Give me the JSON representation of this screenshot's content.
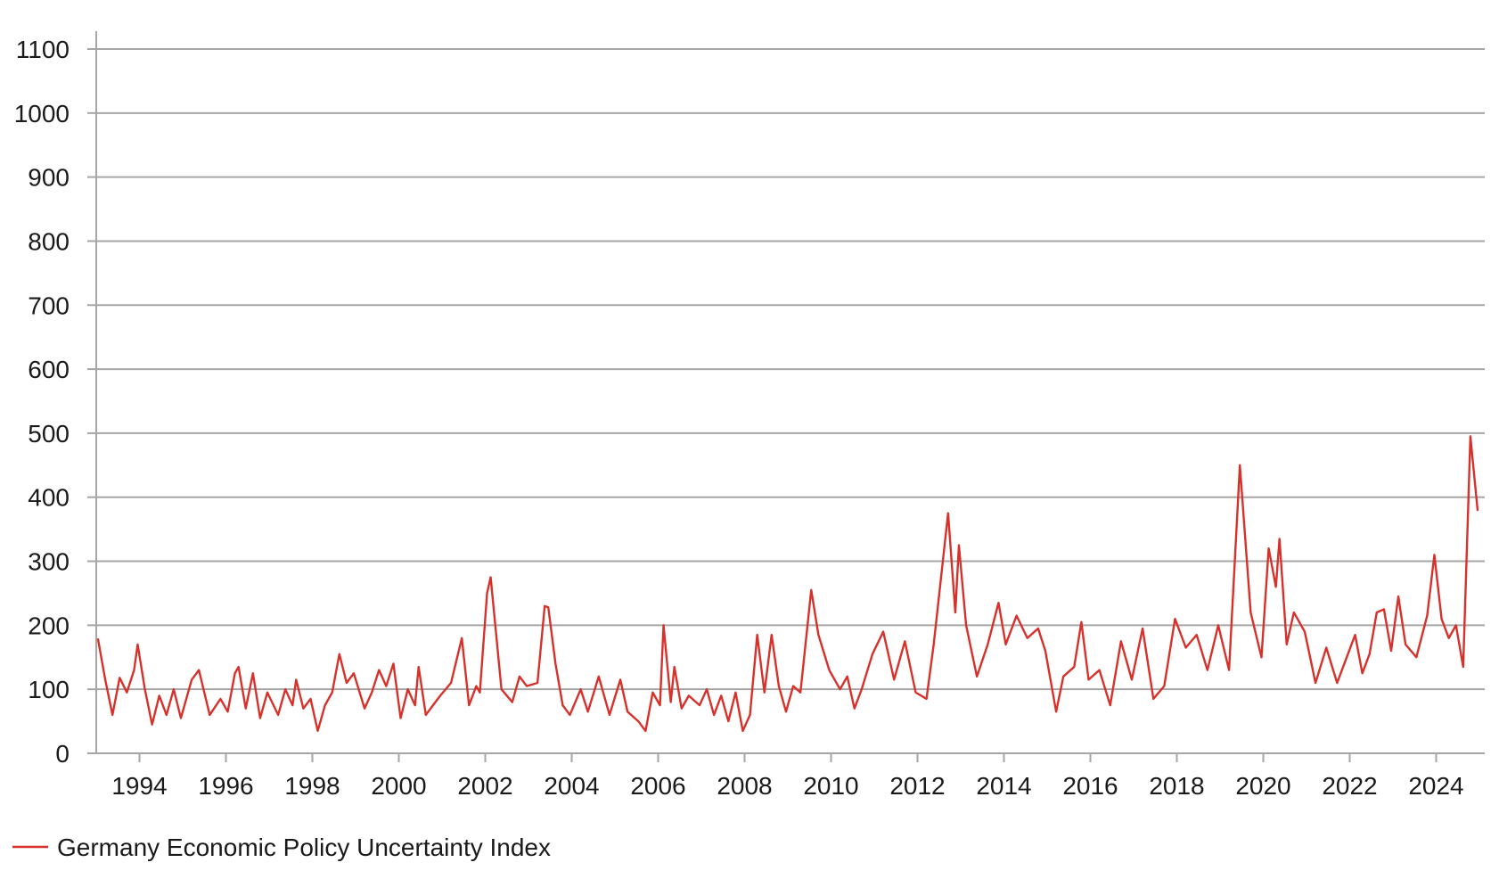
{
  "chart_data": {
    "type": "line",
    "title": "",
    "xlabel": "",
    "ylabel": "",
    "xlim": [
      1993.0,
      2025.0
    ],
    "ylim": [
      0,
      1100
    ],
    "x_ticks": [
      1994,
      1996,
      1998,
      2000,
      2002,
      2004,
      2006,
      2008,
      2010,
      2012,
      2014,
      2016,
      2018,
      2020,
      2022,
      2024
    ],
    "x_tick_labels": [
      "1994",
      "1996",
      "1998",
      "2000",
      "2002",
      "2004",
      "2006",
      "2008",
      "2010",
      "2012",
      "2014",
      "2016",
      "2018",
      "2020",
      "2022",
      "2024"
    ],
    "y_ticks": [
      0,
      100,
      200,
      300,
      400,
      500,
      600,
      700,
      800,
      900,
      1000,
      1100
    ],
    "y_tick_labels": [
      "0",
      "100",
      "200",
      "300",
      "400",
      "500",
      "600",
      "700",
      "800",
      "900",
      "1000",
      "1100"
    ],
    "grid": "horizontal",
    "legend_position": "bottom-left",
    "colors": {
      "series": "#d7312b",
      "grid": "#a6a6a6",
      "axis": "#a6a6a6"
    },
    "series": [
      {
        "name": "Germany Economic Policy Uncertainty Index",
        "points": [
          [
            "1993-01",
            178
          ],
          [
            "1993-03",
            115
          ],
          [
            "1993-05",
            60
          ],
          [
            "1993-07",
            118
          ],
          [
            "1993-09",
            95
          ],
          [
            "1993-11",
            130
          ],
          [
            "1993-12",
            170
          ],
          [
            "1994-02",
            100
          ],
          [
            "1994-04",
            45
          ],
          [
            "1994-06",
            90
          ],
          [
            "1994-08",
            60
          ],
          [
            "1994-10",
            100
          ],
          [
            "1994-12",
            55
          ],
          [
            "1995-03",
            115
          ],
          [
            "1995-05",
            130
          ],
          [
            "1995-08",
            60
          ],
          [
            "1995-11",
            85
          ],
          [
            "1996-01",
            65
          ],
          [
            "1996-03",
            125
          ],
          [
            "1996-04",
            135
          ],
          [
            "1996-06",
            70
          ],
          [
            "1996-08",
            125
          ],
          [
            "1996-10",
            55
          ],
          [
            "1996-12",
            95
          ],
          [
            "1997-03",
            60
          ],
          [
            "1997-05",
            100
          ],
          [
            "1997-07",
            75
          ],
          [
            "1997-08",
            115
          ],
          [
            "1997-10",
            70
          ],
          [
            "1997-12",
            85
          ],
          [
            "1998-02",
            35
          ],
          [
            "1998-04",
            75
          ],
          [
            "1998-06",
            95
          ],
          [
            "1998-08",
            155
          ],
          [
            "1998-10",
            110
          ],
          [
            "1998-12",
            125
          ],
          [
            "1999-03",
            70
          ],
          [
            "1999-05",
            95
          ],
          [
            "1999-07",
            130
          ],
          [
            "1999-09",
            105
          ],
          [
            "1999-11",
            140
          ],
          [
            "2000-01",
            55
          ],
          [
            "2000-03",
            100
          ],
          [
            "2000-05",
            75
          ],
          [
            "2000-06",
            135
          ],
          [
            "2000-08",
            60
          ],
          [
            "2000-10",
            75
          ],
          [
            "2000-12",
            90
          ],
          [
            "2001-03",
            110
          ],
          [
            "2001-06",
            180
          ],
          [
            "2001-08",
            75
          ],
          [
            "2001-10",
            105
          ],
          [
            "2001-11",
            95
          ],
          [
            "2002-01",
            250
          ],
          [
            "2002-02",
            275
          ],
          [
            "2002-05",
            100
          ],
          [
            "2002-08",
            80
          ],
          [
            "2002-10",
            120
          ],
          [
            "2002-12",
            105
          ],
          [
            "2003-03",
            110
          ],
          [
            "2003-05",
            230
          ],
          [
            "2003-06",
            228
          ],
          [
            "2003-08",
            140
          ],
          [
            "2003-10",
            75
          ],
          [
            "2003-12",
            60
          ],
          [
            "2004-03",
            100
          ],
          [
            "2004-05",
            65
          ],
          [
            "2004-08",
            120
          ],
          [
            "2004-11",
            60
          ],
          [
            "2005-02",
            115
          ],
          [
            "2005-04",
            65
          ],
          [
            "2005-07",
            50
          ],
          [
            "2005-09",
            35
          ],
          [
            "2005-11",
            95
          ],
          [
            "2006-01",
            75
          ],
          [
            "2006-02",
            200
          ],
          [
            "2006-04",
            80
          ],
          [
            "2006-05",
            135
          ],
          [
            "2006-07",
            70
          ],
          [
            "2006-09",
            90
          ],
          [
            "2006-12",
            75
          ],
          [
            "2007-02",
            100
          ],
          [
            "2007-04",
            60
          ],
          [
            "2007-06",
            90
          ],
          [
            "2007-08",
            50
          ],
          [
            "2007-10",
            95
          ],
          [
            "2007-12",
            35
          ],
          [
            "2008-02",
            60
          ],
          [
            "2008-04",
            185
          ],
          [
            "2008-06",
            95
          ],
          [
            "2008-08",
            185
          ],
          [
            "2008-10",
            105
          ],
          [
            "2008-12",
            65
          ],
          [
            "2009-02",
            105
          ],
          [
            "2009-04",
            95
          ],
          [
            "2009-07",
            255
          ],
          [
            "2009-09",
            185
          ],
          [
            "2009-12",
            130
          ],
          [
            "2010-03",
            100
          ],
          [
            "2010-05",
            120
          ],
          [
            "2010-07",
            70
          ],
          [
            "2010-09",
            100
          ],
          [
            "2010-12",
            155
          ],
          [
            "2011-03",
            190
          ],
          [
            "2011-06",
            115
          ],
          [
            "2011-09",
            175
          ],
          [
            "2011-12",
            95
          ],
          [
            "2012-03",
            85
          ],
          [
            "2012-05",
            170
          ],
          [
            "2012-09",
            375
          ],
          [
            "2012-11",
            220
          ],
          [
            "2012-12",
            325
          ],
          [
            "2013-02",
            200
          ],
          [
            "2013-05",
            120
          ],
          [
            "2013-08",
            170
          ],
          [
            "2013-11",
            235
          ],
          [
            "2014-01",
            170
          ],
          [
            "2014-04",
            215
          ],
          [
            "2014-07",
            180
          ],
          [
            "2014-10",
            195
          ],
          [
            "2014-12",
            160
          ],
          [
            "2015-03",
            65
          ],
          [
            "2015-05",
            120
          ],
          [
            "2015-08",
            135
          ],
          [
            "2015-10",
            205
          ],
          [
            "2015-12",
            115
          ],
          [
            "2016-03",
            130
          ],
          [
            "2016-06",
            75
          ],
          [
            "2016-09",
            175
          ],
          [
            "2016-12",
            115
          ],
          [
            "2017-03",
            195
          ],
          [
            "2017-06",
            85
          ],
          [
            "2017-09",
            105
          ],
          [
            "2017-12",
            210
          ],
          [
            "2018-03",
            165
          ],
          [
            "2018-06",
            185
          ],
          [
            "2018-09",
            130
          ],
          [
            "2018-12",
            200
          ],
          [
            "2019-03",
            130
          ],
          [
            "2019-06",
            450
          ],
          [
            "2019-09",
            220
          ],
          [
            "2019-12",
            150
          ],
          [
            "2020-02",
            320
          ],
          [
            "2020-04",
            260
          ],
          [
            "2020-05",
            335
          ],
          [
            "2020-07",
            170
          ],
          [
            "2020-09",
            220
          ],
          [
            "2020-12",
            190
          ],
          [
            "2021-03",
            110
          ],
          [
            "2021-06",
            165
          ],
          [
            "2021-09",
            110
          ],
          [
            "2021-12",
            155
          ],
          [
            "2022-02",
            185
          ],
          [
            "2022-04",
            125
          ],
          [
            "2022-06",
            155
          ],
          [
            "2022-08",
            220
          ],
          [
            "2022-10",
            225
          ],
          [
            "2022-12",
            160
          ],
          [
            "2023-02",
            245
          ],
          [
            "2023-04",
            170
          ],
          [
            "2023-07",
            150
          ],
          [
            "2023-10",
            215
          ],
          [
            "2023-12",
            310
          ],
          [
            "2024-02",
            210
          ],
          [
            "2024-04",
            180
          ],
          [
            "2024-06",
            200
          ],
          [
            "2024-08",
            135
          ],
          [
            "2024-10",
            495
          ],
          [
            "2024-12",
            380
          ]
        ]
      }
    ]
  }
}
